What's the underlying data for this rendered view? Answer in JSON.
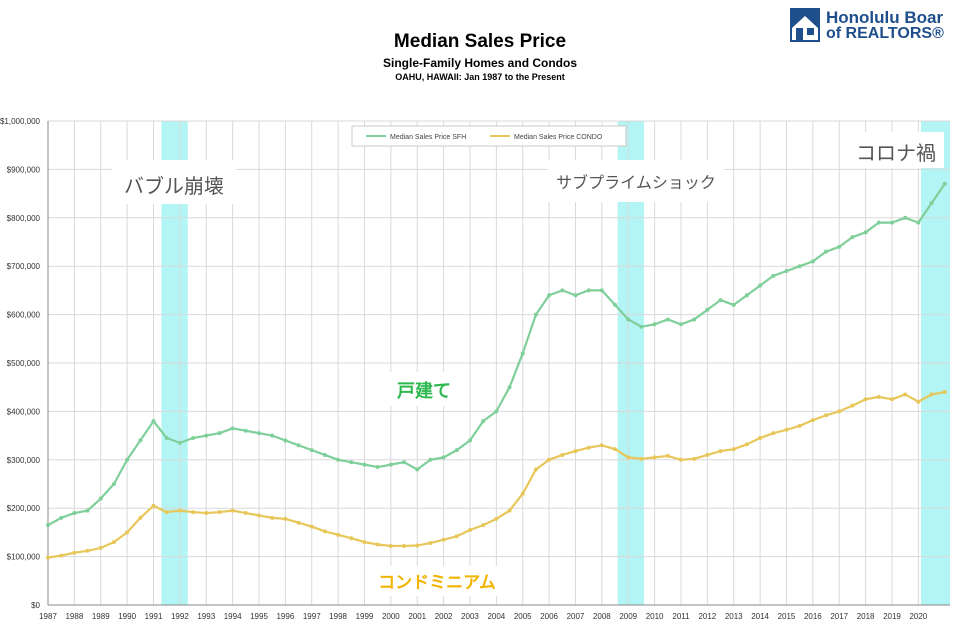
{
  "header": {
    "title": "Median Sales Price",
    "subtitle": "Single-Family Homes and Condos",
    "subtitle2": "OAHU, HAWAII: Jan 1987 to the Present"
  },
  "logo": {
    "line1": "Honolulu Boar",
    "line2": "of REALTORS®",
    "icon": "house-logo-icon",
    "color": "#1f4e8c"
  },
  "colors": {
    "sfh": "#7fcf9a",
    "condo": "#e8c75a",
    "highlight": "#a6f2f2",
    "grid": "#d9d9d9",
    "annotation_dark": "#555555",
    "annotation_sfh": "#2db84e",
    "annotation_condo": "#f0b400"
  },
  "annotations": {
    "bubble": "バブル崩壊",
    "subprime": "サブプライムショック",
    "corona": "コロナ禍",
    "sfh": "戸建て",
    "condo": "コンドミニアム"
  },
  "chart_data": {
    "type": "line",
    "title": "Median Sales Price",
    "subtitle": "Single-Family Homes and Condos",
    "ylim": [
      0,
      1000000
    ],
    "yticks": [
      0,
      100000,
      200000,
      300000,
      400000,
      500000,
      600000,
      700000,
      800000,
      900000,
      1000000
    ],
    "ytick_labels": [
      "$0",
      "$100,000",
      "$200,000",
      "$300,000",
      "$400,000",
      "$500,000",
      "$600,000",
      "$700,000",
      "$800,000",
      "$900,000",
      "$1,000,000"
    ],
    "xlim": [
      1987,
      2021.2
    ],
    "xticks": [
      1987,
      1988,
      1989,
      1990,
      1991,
      1992,
      1993,
      1994,
      1995,
      1996,
      1997,
      1998,
      1999,
      2000,
      2001,
      2002,
      2003,
      2004,
      2005,
      2006,
      2007,
      2008,
      2009,
      2010,
      2011,
      2012,
      2013,
      2014,
      2015,
      2016,
      2017,
      2018,
      2019,
      2020
    ],
    "grid": true,
    "legend_position": "top-center",
    "highlight_periods": [
      [
        1991.3,
        1992.3
      ],
      [
        2008.6,
        2009.6
      ],
      [
        2020.1,
        2021.2
      ]
    ],
    "series": [
      {
        "name": "Median Sales Price SFH",
        "x": [
          1987.0,
          1987.5,
          1988.0,
          1988.5,
          1989.0,
          1989.5,
          1990.0,
          1990.5,
          1991.0,
          1991.5,
          1992.0,
          1992.5,
          1993.0,
          1993.5,
          1994.0,
          1994.5,
          1995.0,
          1995.5,
          1996.0,
          1996.5,
          1997.0,
          1997.5,
          1998.0,
          1998.5,
          1999.0,
          1999.5,
          2000.0,
          2000.5,
          2001.0,
          2001.5,
          2002.0,
          2002.5,
          2003.0,
          2003.5,
          2004.0,
          2004.5,
          2005.0,
          2005.5,
          2006.0,
          2006.5,
          2007.0,
          2007.5,
          2008.0,
          2008.5,
          2009.0,
          2009.5,
          2010.0,
          2010.5,
          2011.0,
          2011.5,
          2012.0,
          2012.5,
          2013.0,
          2013.5,
          2014.0,
          2014.5,
          2015.0,
          2015.5,
          2016.0,
          2016.5,
          2017.0,
          2017.5,
          2018.0,
          2018.5,
          2019.0,
          2019.5,
          2020.0,
          2020.5,
          2021.0
        ],
        "values": [
          165000,
          180000,
          190000,
          195000,
          220000,
          250000,
          300000,
          340000,
          380000,
          345000,
          335000,
          345000,
          350000,
          355000,
          365000,
          360000,
          355000,
          350000,
          340000,
          330000,
          320000,
          310000,
          300000,
          295000,
          290000,
          285000,
          290000,
          295000,
          280000,
          300000,
          305000,
          320000,
          340000,
          380000,
          400000,
          450000,
          520000,
          600000,
          640000,
          650000,
          640000,
          650000,
          650000,
          620000,
          590000,
          575000,
          580000,
          590000,
          580000,
          590000,
          610000,
          630000,
          620000,
          640000,
          660000,
          680000,
          690000,
          700000,
          710000,
          730000,
          740000,
          760000,
          770000,
          790000,
          790000,
          800000,
          790000,
          830000,
          870000
        ]
      },
      {
        "name": "Median Sales Price CONDO",
        "x": [
          1987.0,
          1987.5,
          1988.0,
          1988.5,
          1989.0,
          1989.5,
          1990.0,
          1990.5,
          1991.0,
          1991.5,
          1992.0,
          1992.5,
          1993.0,
          1993.5,
          1994.0,
          1994.5,
          1995.0,
          1995.5,
          1996.0,
          1996.5,
          1997.0,
          1997.5,
          1998.0,
          1998.5,
          1999.0,
          1999.5,
          2000.0,
          2000.5,
          2001.0,
          2001.5,
          2002.0,
          2002.5,
          2003.0,
          2003.5,
          2004.0,
          2004.5,
          2005.0,
          2005.5,
          2006.0,
          2006.5,
          2007.0,
          2007.5,
          2008.0,
          2008.5,
          2009.0,
          2009.5,
          2010.0,
          2010.5,
          2011.0,
          2011.5,
          2012.0,
          2012.5,
          2013.0,
          2013.5,
          2014.0,
          2014.5,
          2015.0,
          2015.5,
          2016.0,
          2016.5,
          2017.0,
          2017.5,
          2018.0,
          2018.5,
          2019.0,
          2019.5,
          2020.0,
          2020.5,
          2021.0
        ],
        "values": [
          98000,
          102000,
          108000,
          112000,
          118000,
          130000,
          150000,
          180000,
          205000,
          192000,
          195000,
          192000,
          190000,
          192000,
          195000,
          190000,
          185000,
          180000,
          178000,
          170000,
          162000,
          152000,
          145000,
          138000,
          130000,
          125000,
          122000,
          122000,
          123000,
          128000,
          135000,
          142000,
          155000,
          165000,
          178000,
          195000,
          230000,
          280000,
          300000,
          310000,
          318000,
          325000,
          330000,
          322000,
          305000,
          302000,
          305000,
          308000,
          300000,
          302000,
          310000,
          318000,
          322000,
          332000,
          345000,
          355000,
          362000,
          370000,
          382000,
          392000,
          400000,
          412000,
          425000,
          430000,
          425000,
          435000,
          420000,
          435000,
          440000
        ]
      }
    ]
  }
}
